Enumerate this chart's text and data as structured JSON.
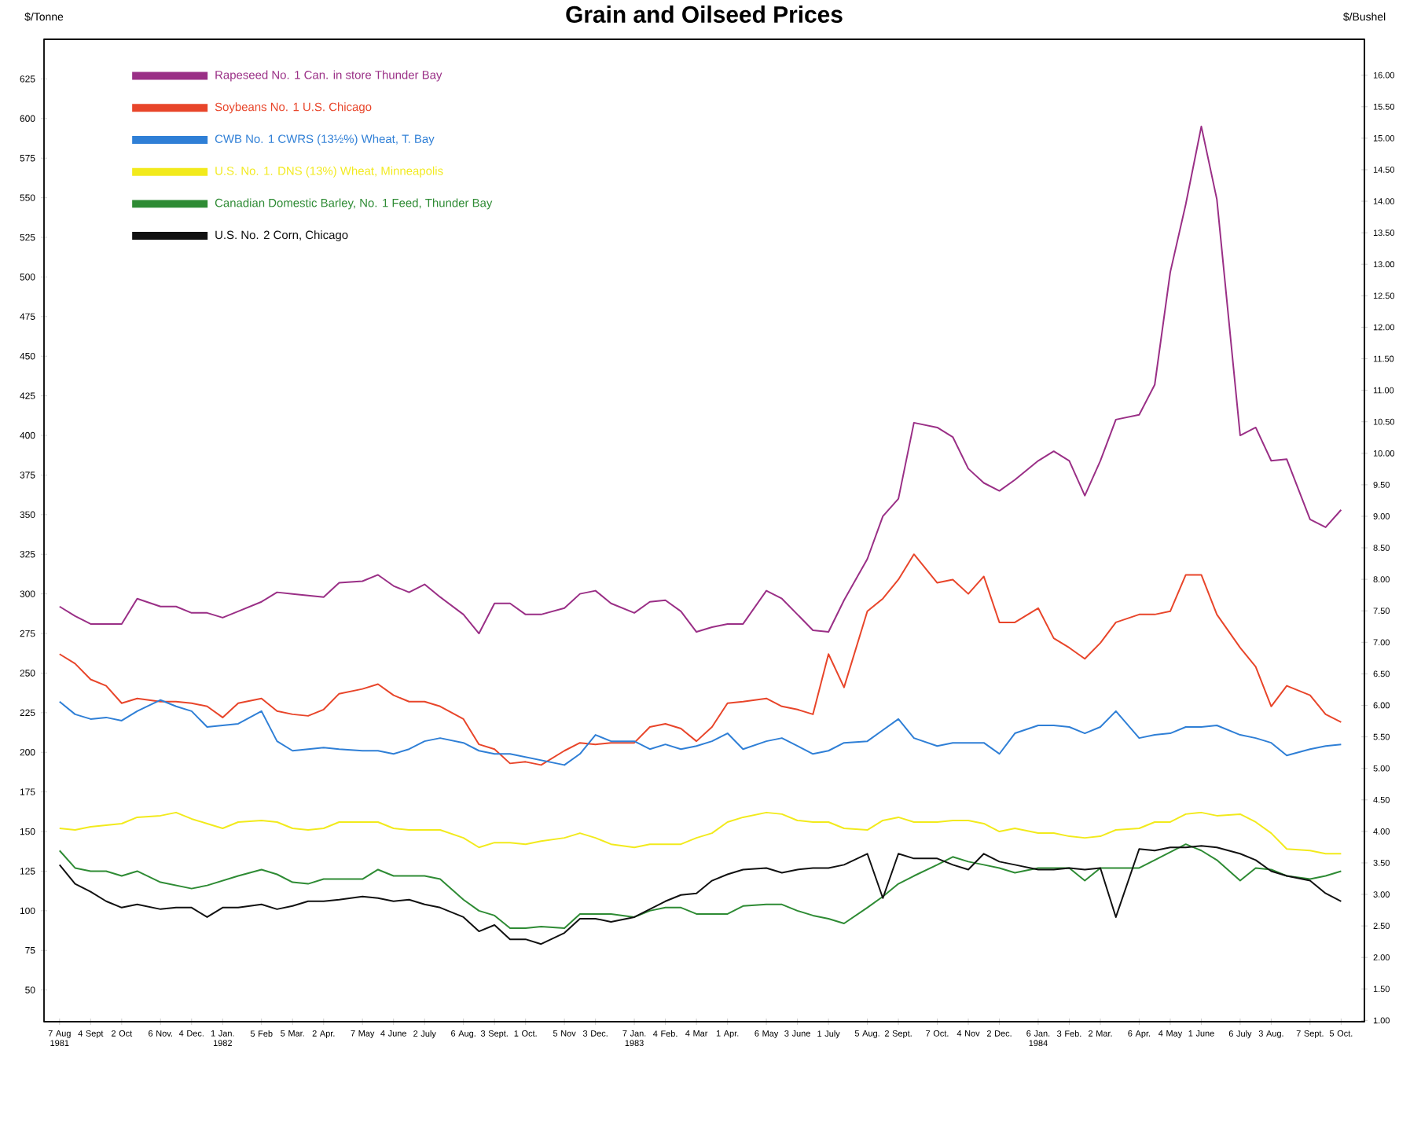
{
  "chart_data": {
    "type": "line",
    "title": "Grain and Oilseed Prices",
    "ylabel": "$/Tonne",
    "y2label": "$/Bushel",
    "x": [
      "1981-08-07",
      "1981-08-21",
      "1981-09-04",
      "1981-09-18",
      "1981-10-02",
      "1981-10-16",
      "1981-11-06",
      "1981-11-20",
      "1981-12-04",
      "1981-12-18",
      "1982-01-01",
      "1982-01-15",
      "1982-02-05",
      "1982-02-19",
      "1982-03-05",
      "1982-03-19",
      "1982-04-02",
      "1982-04-16",
      "1982-05-07",
      "1982-05-21",
      "1982-06-04",
      "1982-06-18",
      "1982-07-02",
      "1982-07-16",
      "1982-08-06",
      "1982-08-20",
      "1982-09-03",
      "1982-09-17",
      "1982-10-01",
      "1982-10-15",
      "1982-11-05",
      "1982-11-19",
      "1982-12-03",
      "1982-12-17",
      "1983-01-07",
      "1983-01-21",
      "1983-02-04",
      "1983-02-18",
      "1983-03-04",
      "1983-03-18",
      "1983-04-01",
      "1983-04-15",
      "1983-05-06",
      "1983-05-20",
      "1983-06-03",
      "1983-06-17",
      "1983-07-01",
      "1983-07-15",
      "1983-08-05",
      "1983-08-19",
      "1983-09-02",
      "1983-09-16",
      "1983-10-07",
      "1983-10-21",
      "1983-11-04",
      "1983-11-18",
      "1983-12-02",
      "1983-12-16",
      "1984-01-06",
      "1984-01-20",
      "1984-02-03",
      "1984-02-17",
      "1984-03-02",
      "1984-03-16",
      "1984-04-06",
      "1984-04-20",
      "1984-05-04",
      "1984-05-18",
      "1984-06-01",
      "1984-06-15",
      "1984-07-06",
      "1984-07-20",
      "1984-08-03",
      "1984-08-17",
      "1984-09-07",
      "1984-09-21",
      "1984-10-05"
    ],
    "series": [
      {
        "name": "Rapeseed No. 1 Can. in store Thunder Bay",
        "color": "#9a2f86",
        "values": [
          292,
          286,
          281,
          281,
          281,
          297,
          292,
          292,
          288,
          288,
          285,
          289,
          295,
          301,
          300,
          299,
          298,
          307,
          308,
          312,
          305,
          301,
          306,
          298,
          287,
          275,
          294,
          294,
          287,
          287,
          291,
          300,
          302,
          294,
          288,
          295,
          296,
          289,
          276,
          279,
          281,
          281,
          302,
          297,
          287,
          277,
          276,
          296,
          322,
          349,
          360,
          408,
          405,
          399,
          379,
          370,
          365,
          372,
          384,
          390,
          384,
          362,
          384,
          410,
          413,
          432,
          503,
          546,
          595,
          549,
          400,
          405,
          384,
          385,
          347,
          342,
          353
        ]
      },
      {
        "name": "Soybeans No. 1 U.S. Chicago",
        "color": "#e8452a",
        "values": [
          262,
          256,
          246,
          242,
          231,
          234,
          232,
          232,
          231,
          229,
          222,
          231,
          234,
          226,
          224,
          223,
          227,
          237,
          240,
          243,
          236,
          232,
          232,
          229,
          221,
          205,
          202,
          193,
          194,
          192,
          201,
          206,
          205,
          206,
          206,
          216,
          218,
          215,
          207,
          216,
          231,
          232,
          234,
          229,
          227,
          224,
          262,
          241,
          289,
          297,
          309,
          325,
          307,
          309,
          300,
          311,
          282,
          282,
          291,
          272,
          266,
          259,
          269,
          282,
          287,
          287,
          289,
          312,
          312,
          287,
          266,
          254,
          229,
          242,
          236,
          224,
          219
        ]
      },
      {
        "name": "CWB No. 1 CWRS (13½%) Wheat, T. Bay",
        "color": "#2f7fd6",
        "values": [
          232,
          224,
          221,
          222,
          220,
          226,
          233,
          229,
          226,
          216,
          217,
          218,
          226,
          207,
          201,
          202,
          203,
          202,
          201,
          201,
          199,
          202,
          207,
          209,
          206,
          201,
          199,
          199,
          197,
          195,
          192,
          199,
          211,
          207,
          207,
          202,
          205,
          202,
          204,
          207,
          212,
          202,
          207,
          209,
          204,
          199,
          201,
          206,
          207,
          214,
          221,
          209,
          204,
          206,
          206,
          206,
          199,
          212,
          217,
          217,
          216,
          212,
          216,
          226,
          209,
          211,
          212,
          216,
          216,
          217,
          211,
          209,
          206,
          198,
          202,
          204,
          205
        ]
      },
      {
        "name": "U.S. No. 1. DNS (13%) Wheat, Minneapolis",
        "color": "#f2ea1c",
        "values": [
          152,
          151,
          153,
          154,
          155,
          159,
          160,
          162,
          158,
          155,
          152,
          156,
          157,
          156,
          152,
          151,
          152,
          156,
          156,
          156,
          152,
          151,
          151,
          151,
          146,
          140,
          143,
          143,
          142,
          144,
          146,
          149,
          146,
          142,
          140,
          142,
          142,
          142,
          146,
          149,
          156,
          159,
          162,
          161,
          157,
          156,
          156,
          152,
          151,
          157,
          159,
          156,
          156,
          157,
          157,
          155,
          150,
          152,
          149,
          149,
          147,
          146,
          147,
          151,
          152,
          156,
          156,
          161,
          162,
          160,
          161,
          156,
          149,
          139,
          138,
          136,
          136
        ]
      },
      {
        "name": "Canadian Domestic Barley, No. 1 Feed, Thunder Bay",
        "color": "#2e8b34",
        "values": [
          138,
          127,
          125,
          125,
          122,
          125,
          118,
          116,
          114,
          116,
          119,
          122,
          126,
          123,
          118,
          117,
          120,
          120,
          120,
          126,
          122,
          122,
          122,
          120,
          107,
          100,
          97,
          89,
          89,
          90,
          89,
          98,
          98,
          98,
          96,
          100,
          102,
          102,
          98,
          98,
          98,
          103,
          104,
          104,
          100,
          97,
          95,
          92,
          102,
          109,
          117,
          122,
          129,
          134,
          131,
          129,
          127,
          124,
          127,
          127,
          127,
          119,
          127,
          127,
          127,
          132,
          137,
          142,
          138,
          132,
          119,
          127,
          126,
          122,
          120,
          122,
          125
        ]
      },
      {
        "name": "U.S. No. 2 Corn, Chicago",
        "color": "#111111",
        "values": [
          129,
          117,
          112,
          106,
          102,
          104,
          101,
          102,
          102,
          96,
          102,
          102,
          104,
          101,
          103,
          106,
          106,
          107,
          109,
          108,
          106,
          107,
          104,
          102,
          96,
          87,
          91,
          82,
          82,
          79,
          86,
          95,
          95,
          93,
          96,
          101,
          106,
          110,
          111,
          119,
          123,
          126,
          127,
          124,
          126,
          127,
          127,
          129,
          136,
          108,
          136,
          133,
          133,
          129,
          126,
          136,
          131,
          129,
          126,
          126,
          127,
          126,
          127,
          96,
          139,
          138,
          140,
          140,
          141,
          140,
          136,
          132,
          125,
          122,
          119,
          111,
          106
        ]
      }
    ],
    "xlim": [
      "1981-07-24",
      "1984-10-26"
    ],
    "xticks": [
      {
        "value": "1981-08-07",
        "label": "7 Aug 1981"
      },
      {
        "value": "1981-09-04",
        "label": "4 Sept"
      },
      {
        "value": "1981-10-02",
        "label": "2 Oct"
      },
      {
        "value": "1981-11-06",
        "label": "6 Nov."
      },
      {
        "value": "1981-12-04",
        "label": "4 Dec."
      },
      {
        "value": "1982-01-01",
        "label": "1 Jan. 1982"
      },
      {
        "value": "1982-02-05",
        "label": "5 Feb"
      },
      {
        "value": "1982-03-05",
        "label": "5 Mar."
      },
      {
        "value": "1982-04-02",
        "label": "2 Apr."
      },
      {
        "value": "1982-05-07",
        "label": "7 May"
      },
      {
        "value": "1982-06-04",
        "label": "4 June"
      },
      {
        "value": "1982-07-02",
        "label": "2 July"
      },
      {
        "value": "1982-08-06",
        "label": "6 Aug."
      },
      {
        "value": "1982-09-03",
        "label": "3 Sept."
      },
      {
        "value": "1982-10-01",
        "label": "1 Oct."
      },
      {
        "value": "1982-11-05",
        "label": "5 Nov"
      },
      {
        "value": "1982-12-03",
        "label": "3 Dec."
      },
      {
        "value": "1983-01-07",
        "label": "7 Jan. 1983"
      },
      {
        "value": "1983-02-04",
        "label": "4 Feb."
      },
      {
        "value": "1983-03-04",
        "label": "4 Mar"
      },
      {
        "value": "1983-04-01",
        "label": "1 Apr."
      },
      {
        "value": "1983-05-06",
        "label": "6 May"
      },
      {
        "value": "1983-06-03",
        "label": "3 June"
      },
      {
        "value": "1983-07-01",
        "label": "1 July"
      },
      {
        "value": "1983-08-05",
        "label": "5 Aug."
      },
      {
        "value": "1983-09-02",
        "label": "2 Sept."
      },
      {
        "value": "1983-10-07",
        "label": "7 Oct."
      },
      {
        "value": "1983-11-04",
        "label": "4 Nov"
      },
      {
        "value": "1983-12-02",
        "label": "2 Dec."
      },
      {
        "value": "1984-01-06",
        "label": "6 Jan. 1984"
      },
      {
        "value": "1984-02-03",
        "label": "3 Feb."
      },
      {
        "value": "1984-03-02",
        "label": "2 Mar."
      },
      {
        "value": "1984-04-06",
        "label": "6 Apr."
      },
      {
        "value": "1984-05-04",
        "label": "4 May"
      },
      {
        "value": "1984-06-01",
        "label": "1 June"
      },
      {
        "value": "1984-07-06",
        "label": "6 July"
      },
      {
        "value": "1984-08-03",
        "label": "3 Aug."
      },
      {
        "value": "1984-09-07",
        "label": "7 Sept."
      },
      {
        "value": "1984-10-05",
        "label": "5 Oct."
      }
    ],
    "ylim": [
      30,
      650
    ],
    "yticks": [
      50,
      75,
      100,
      125,
      150,
      175,
      200,
      225,
      250,
      275,
      300,
      325,
      350,
      375,
      400,
      425,
      450,
      475,
      500,
      525,
      550,
      575,
      600,
      625
    ],
    "y2lim": [
      0.98,
      16.57
    ],
    "y2ticks": [
      {
        "value": 1.0,
        "label": "1.00"
      },
      {
        "value": 1.5,
        "label": "1.50"
      },
      {
        "value": 2.0,
        "label": "2.00"
      },
      {
        "value": 2.5,
        "label": "2.50"
      },
      {
        "value": 3.0,
        "label": "3.00"
      },
      {
        "value": 3.5,
        "label": "3.50"
      },
      {
        "value": 4.0,
        "label": "4.00"
      },
      {
        "value": 4.5,
        "label": "4.50"
      },
      {
        "value": 5.0,
        "label": "5.00"
      },
      {
        "value": 5.5,
        "label": "5.50"
      },
      {
        "value": 6.0,
        "label": "6.00"
      },
      {
        "value": 6.5,
        "label": "6.50"
      },
      {
        "value": 7.0,
        "label": "7.00"
      },
      {
        "value": 7.5,
        "label": "7.50"
      },
      {
        "value": 8.0,
        "label": "8.00"
      },
      {
        "value": 8.5,
        "label": "8.50"
      },
      {
        "value": 9.0,
        "label": "9.00"
      },
      {
        "value": 9.5,
        "label": "9.50"
      },
      {
        "value": 10.0,
        "label": "10.00"
      },
      {
        "value": 10.5,
        "label": "10.50"
      },
      {
        "value": 11.0,
        "label": "11.00"
      },
      {
        "value": 11.5,
        "label": "11.50"
      },
      {
        "value": 12.0,
        "label": "12.00"
      },
      {
        "value": 12.5,
        "label": "12.50"
      },
      {
        "value": 13.0,
        "label": "13.00"
      },
      {
        "value": 13.5,
        "label": "13.50"
      },
      {
        "value": 14.0,
        "label": "14.00"
      },
      {
        "value": 14.5,
        "label": "14.50"
      },
      {
        "value": 15.0,
        "label": "15.00"
      },
      {
        "value": 15.5,
        "label": "15.50"
      },
      {
        "value": 16.0,
        "label": "16.00"
      }
    ],
    "legend": "top left",
    "marker": "none",
    "line_style": "solid"
  }
}
